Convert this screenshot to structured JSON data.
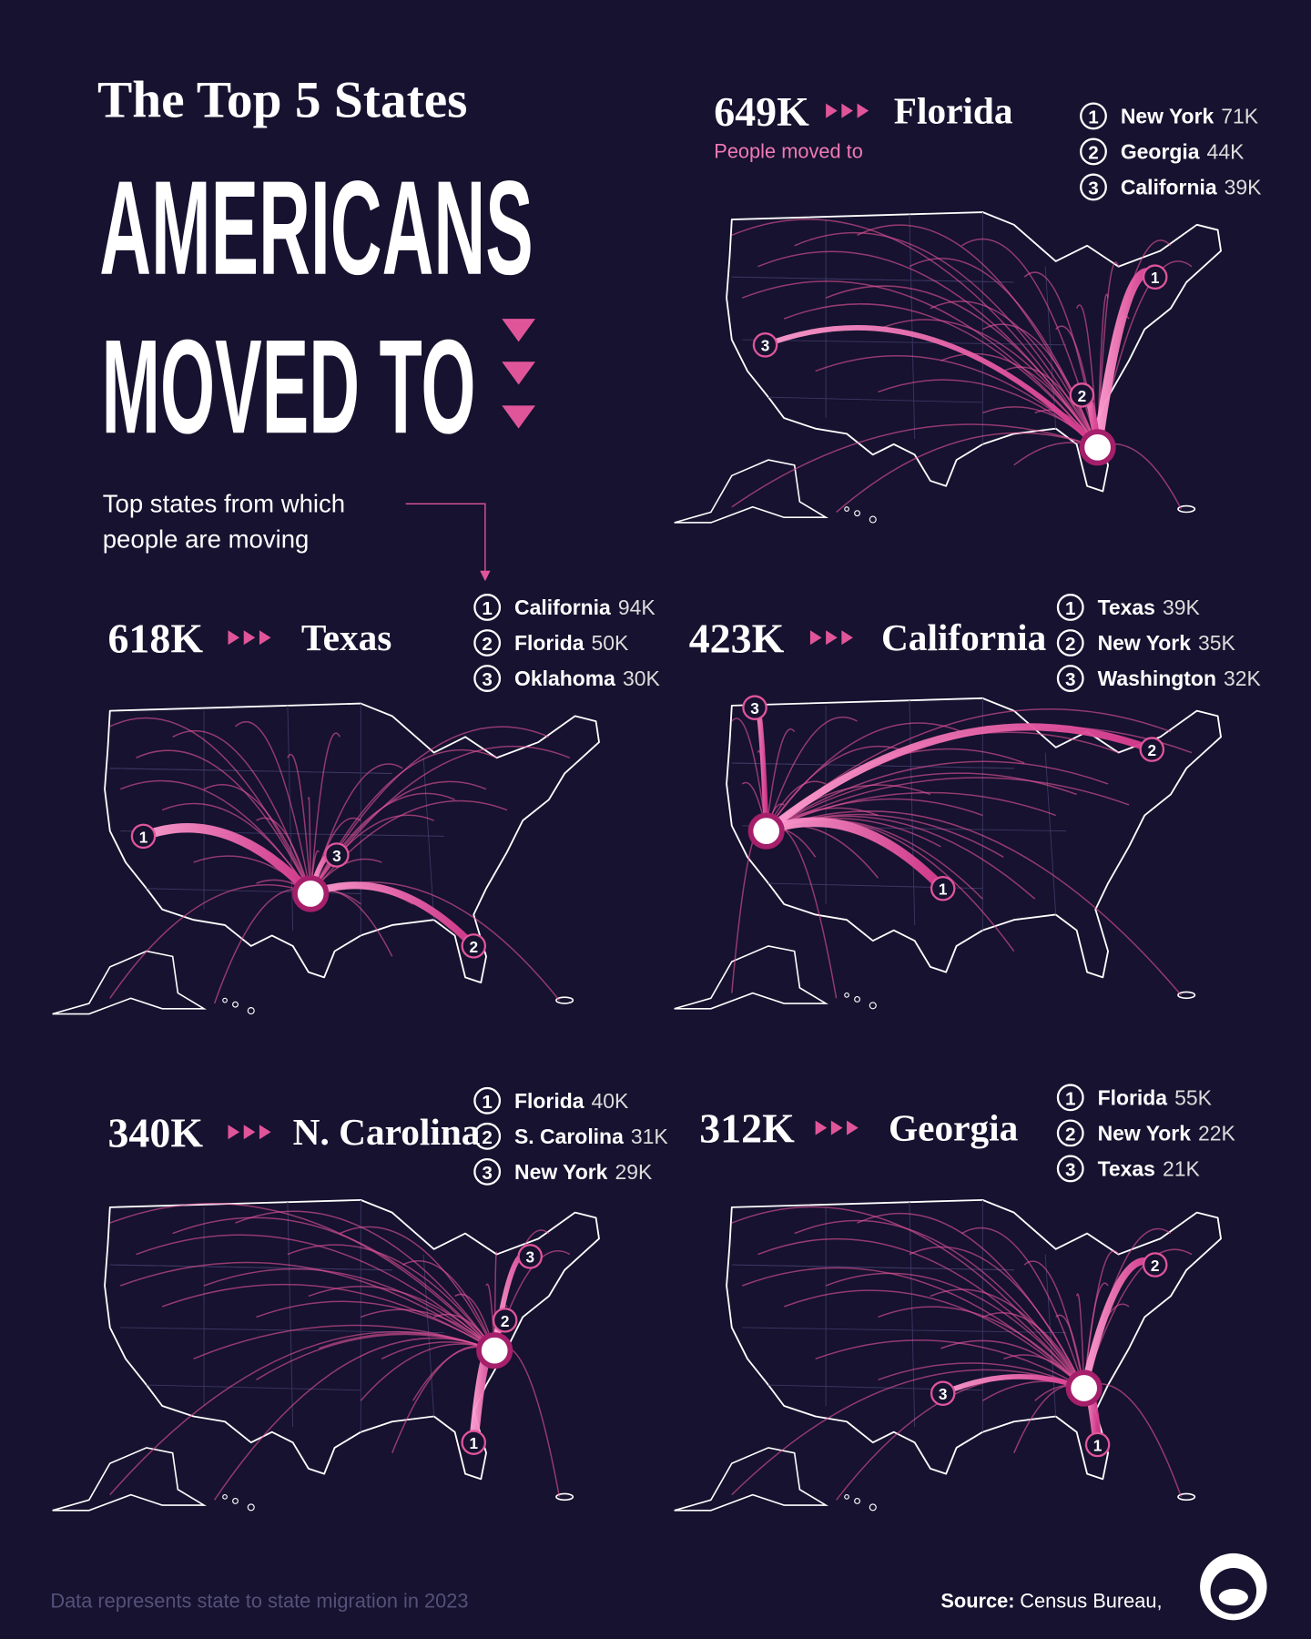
{
  "header": {
    "title_line1": "The Top 5 States",
    "title_line2": "AMERICANS",
    "title_line3": "MOVED TO"
  },
  "annotation": {
    "line1": "Top states from which",
    "line2": "people are moving"
  },
  "panels": [
    {
      "total": "649K",
      "destination": "Florida",
      "subtitle": "People moved to",
      "sources": [
        {
          "rank": 1,
          "state": "New York",
          "value": "71K"
        },
        {
          "rank": 2,
          "state": "Georgia",
          "value": "44K"
        },
        {
          "rank": 3,
          "state": "California",
          "value": "39K"
        }
      ]
    },
    {
      "total": "618K",
      "destination": "Texas",
      "sources": [
        {
          "rank": 1,
          "state": "California",
          "value": "94K"
        },
        {
          "rank": 2,
          "state": "Florida",
          "value": "50K"
        },
        {
          "rank": 3,
          "state": "Oklahoma",
          "value": "30K"
        }
      ]
    },
    {
      "total": "423K",
      "destination": "California",
      "sources": [
        {
          "rank": 1,
          "state": "Texas",
          "value": "39K"
        },
        {
          "rank": 2,
          "state": "New York",
          "value": "35K"
        },
        {
          "rank": 3,
          "state": "Washington",
          "value": "32K"
        }
      ]
    },
    {
      "total": "340K",
      "destination": "N. Carolina",
      "sources": [
        {
          "rank": 1,
          "state": "Florida",
          "value": "40K"
        },
        {
          "rank": 2,
          "state": "S. Carolina",
          "value": "31K"
        },
        {
          "rank": 3,
          "state": "New York",
          "value": "29K"
        }
      ]
    },
    {
      "total": "312K",
      "destination": "Georgia",
      "sources": [
        {
          "rank": 1,
          "state": "Florida",
          "value": "55K"
        },
        {
          "rank": 2,
          "state": "New York",
          "value": "22K"
        },
        {
          "rank": 3,
          "state": "Texas",
          "value": "21K"
        }
      ]
    }
  ],
  "footer": {
    "note": "Data represents state to state migration in 2023",
    "source_label": "Source:",
    "source": "Census Bureau,"
  }
}
